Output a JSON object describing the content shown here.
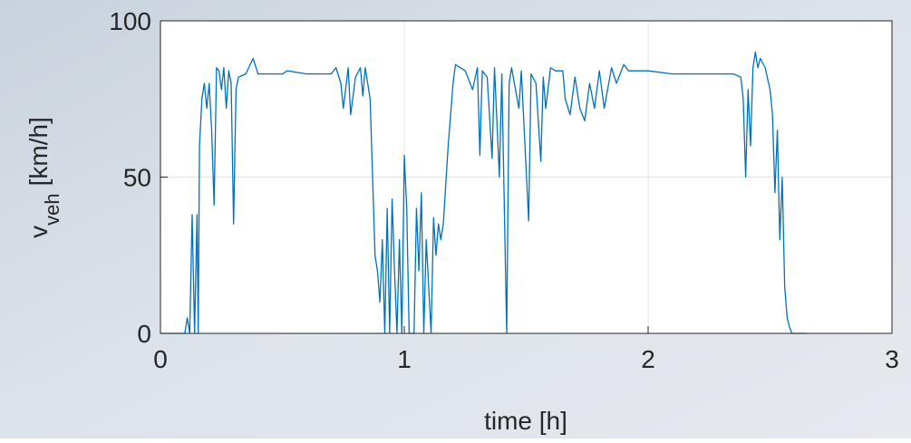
{
  "chart_data": {
    "type": "line",
    "xlabel": "time [h]",
    "ylabel": {
      "text": "v",
      "subscript": "veh",
      "suffix": "[km/h]"
    },
    "xlim": [
      0,
      3
    ],
    "xticks": [
      0,
      1,
      2,
      3
    ],
    "ylim": [
      0,
      100
    ],
    "yticks": [
      0,
      50,
      100
    ],
    "grid": true,
    "series": [
      {
        "color": "#0072bd",
        "x": [
          0,
          0.1,
          0.11,
          0.12,
          0.13,
          0.14,
          0.15,
          0.155,
          0.16,
          0.17,
          0.18,
          0.19,
          0.2,
          0.21,
          0.22,
          0.23,
          0.24,
          0.25,
          0.26,
          0.27,
          0.28,
          0.29,
          0.3,
          0.31,
          0.32,
          0.35,
          0.38,
          0.4,
          0.5,
          0.52,
          0.6,
          0.7,
          0.72,
          0.74,
          0.75,
          0.77,
          0.78,
          0.8,
          0.82,
          0.83,
          0.84,
          0.86,
          0.87,
          0.88,
          0.89,
          0.9,
          0.91,
          0.92,
          0.93,
          0.94,
          0.95,
          0.96,
          0.97,
          0.98,
          0.99,
          1.0,
          1.01,
          1.02,
          1.04,
          1.05,
          1.06,
          1.07,
          1.08,
          1.09,
          1.1,
          1.11,
          1.12,
          1.13,
          1.14,
          1.15,
          1.16,
          1.18,
          1.2,
          1.21,
          1.25,
          1.28,
          1.3,
          1.31,
          1.32,
          1.34,
          1.36,
          1.37,
          1.39,
          1.4,
          1.42,
          1.43,
          1.44,
          1.47,
          1.48,
          1.5,
          1.51,
          1.52,
          1.54,
          1.56,
          1.57,
          1.58,
          1.6,
          1.62,
          1.65,
          1.66,
          1.68,
          1.7,
          1.72,
          1.74,
          1.76,
          1.78,
          1.8,
          1.82,
          1.85,
          1.87,
          1.9,
          1.92,
          2.0,
          2.1,
          2.2,
          2.3,
          2.35,
          2.38,
          2.39,
          2.4,
          2.41,
          2.42,
          2.43,
          2.44,
          2.45,
          2.46,
          2.48,
          2.5,
          2.51,
          2.52,
          2.53,
          2.54,
          2.55,
          2.56,
          2.57,
          2.58,
          2.59,
          2.65
        ],
        "values": [
          0,
          0,
          5,
          0,
          38,
          0,
          38,
          0,
          60,
          75,
          80,
          72,
          80,
          65,
          41,
          85,
          84,
          78,
          85,
          72,
          84,
          80,
          35,
          78,
          82,
          83,
          88,
          83,
          83,
          84,
          83,
          83,
          85,
          80,
          72,
          85,
          70,
          82,
          85,
          76,
          85,
          75,
          50,
          25,
          20,
          10,
          30,
          0,
          40,
          0,
          43,
          20,
          0,
          30,
          0,
          57,
          40,
          0,
          0,
          40,
          20,
          45,
          0,
          30,
          15,
          0,
          37,
          25,
          35,
          30,
          35,
          60,
          80,
          86,
          84,
          78,
          85,
          57,
          84,
          82,
          56,
          85,
          50,
          83,
          0,
          80,
          85,
          72,
          84,
          52,
          36,
          83,
          80,
          55,
          82,
          72,
          85,
          84,
          84,
          75,
          70,
          82,
          72,
          68,
          80,
          72,
          84,
          72,
          85,
          80,
          86,
          84,
          84,
          83,
          83,
          83,
          83,
          82,
          75,
          50,
          78,
          60,
          85,
          90,
          85,
          88,
          85,
          78,
          70,
          45,
          65,
          30,
          50,
          15,
          5,
          2,
          0,
          0
        ]
      }
    ]
  }
}
